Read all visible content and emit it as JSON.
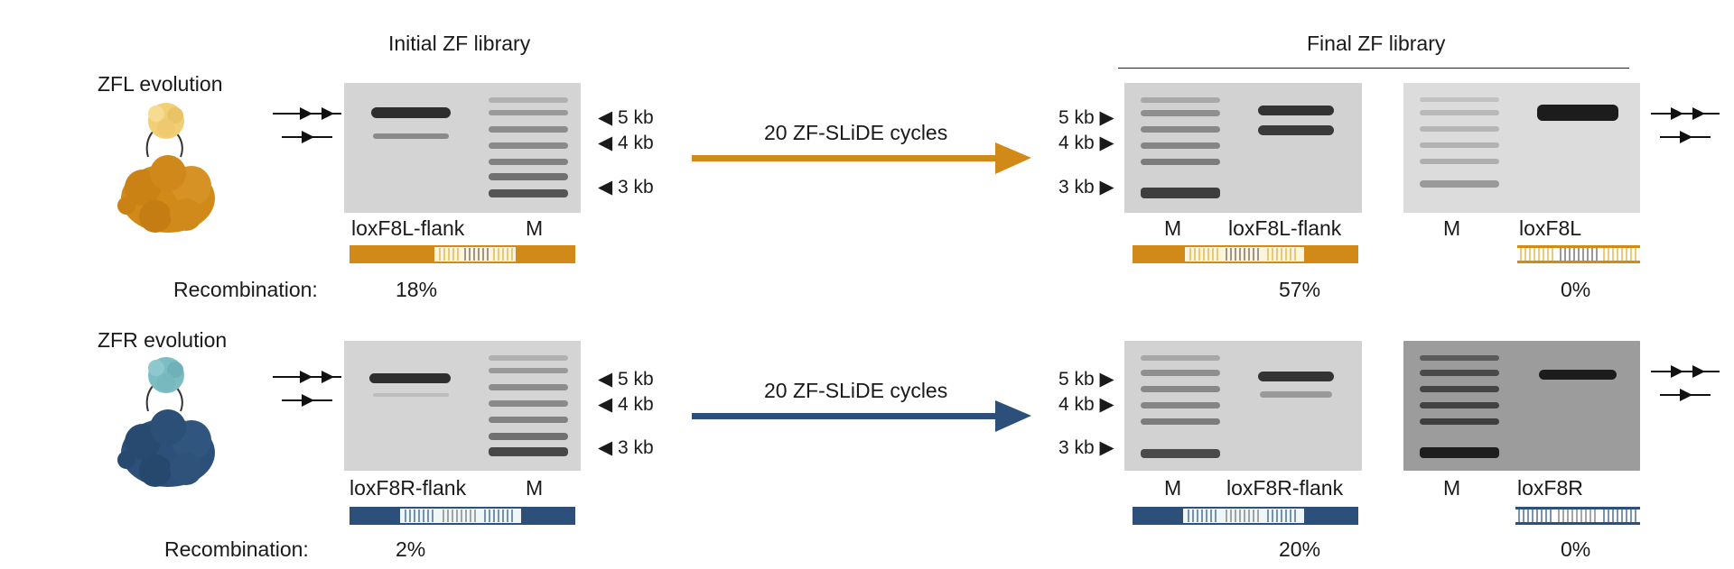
{
  "colors": {
    "zfl": "#d18a17",
    "zfl_light": "#f1cf77",
    "zfr": "#2c5079",
    "zfr_light": "#7cbcc3",
    "gel_light": "#d6d6d6",
    "gel_dark": "#9a9a9a",
    "band": "#333333",
    "ladder": "#555555"
  },
  "headers": {
    "initial": "Initial ZF library",
    "final": "Final ZF library"
  },
  "recombination_label": "Recombination:",
  "markers": {
    "m5": "5 kb",
    "m4": "4 kb",
    "m3": "3 kb"
  },
  "rows": [
    {
      "evolution_label": "ZFL evolution",
      "cycles_label": "20 ZF-SLiDE cycles",
      "initial": {
        "lane_label": "loxF8L-flank",
        "ladder_label": "M",
        "recombination": "18%"
      },
      "final_flank": {
        "ladder_label": "M",
        "lane_label": "loxF8L-flank",
        "recombination": "57%"
      },
      "final_site": {
        "ladder_label": "M",
        "lane_label": "loxF8L",
        "recombination": "0%"
      }
    },
    {
      "evolution_label": "ZFR evolution",
      "cycles_label": "20 ZF-SLiDE cycles",
      "initial": {
        "lane_label": "loxF8R-flank",
        "ladder_label": "M",
        "recombination": "2%"
      },
      "final_flank": {
        "ladder_label": "M",
        "lane_label": "loxF8R-flank",
        "recombination": "20%"
      },
      "final_site": {
        "ladder_label": "M",
        "lane_label": "loxF8R",
        "recombination": "0%"
      }
    }
  ]
}
